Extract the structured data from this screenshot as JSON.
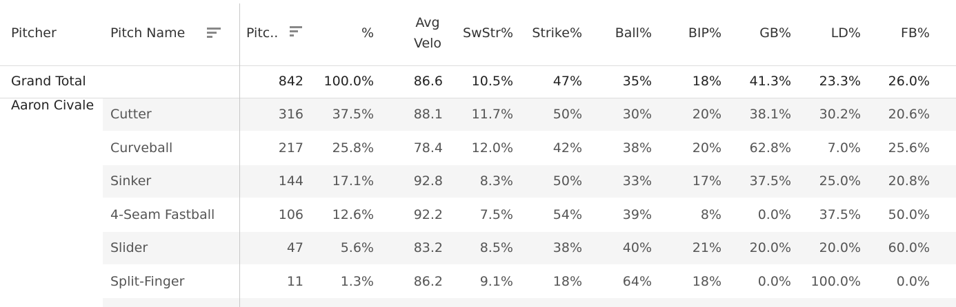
{
  "header": {
    "pitcher": "Pitcher",
    "pitch_name": "Pitch Name",
    "pitches": "Pitc..",
    "pct": "%",
    "avg_velo_1": "Avg",
    "avg_velo_2": "Velo",
    "swstr": "SwStr%",
    "strike": "Strike%",
    "ball": "Ball%",
    "bip": "BIP%",
    "gb": "GB%",
    "ld": "LD%",
    "fb": "FB%"
  },
  "grand_total": {
    "label": "Grand Total",
    "pitches": "842",
    "pct": "100.0%",
    "velo": "86.6",
    "swstr": "10.5%",
    "strike": "47%",
    "ball": "35%",
    "bip": "18%",
    "gb": "41.3%",
    "ld": "23.3%",
    "fb": "26.0%"
  },
  "pitcher": "Aaron Civale",
  "rows": [
    {
      "name": "Cutter",
      "pitches": "316",
      "pct": "37.5%",
      "velo": "88.1",
      "swstr": "11.7%",
      "strike": "50%",
      "ball": "30%",
      "bip": "20%",
      "gb": "38.1%",
      "ld": "30.2%",
      "fb": "20.6%"
    },
    {
      "name": "Curveball",
      "pitches": "217",
      "pct": "25.8%",
      "velo": "78.4",
      "swstr": "12.0%",
      "strike": "42%",
      "ball": "38%",
      "bip": "20%",
      "gb": "62.8%",
      "ld": "7.0%",
      "fb": "25.6%"
    },
    {
      "name": "Sinker",
      "pitches": "144",
      "pct": "17.1%",
      "velo": "92.8",
      "swstr": "8.3%",
      "strike": "50%",
      "ball": "33%",
      "bip": "17%",
      "gb": "37.5%",
      "ld": "25.0%",
      "fb": "20.8%"
    },
    {
      "name": "4-Seam Fastball",
      "pitches": "106",
      "pct": "12.6%",
      "velo": "92.2",
      "swstr": "7.5%",
      "strike": "54%",
      "ball": "39%",
      "bip": "8%",
      "gb": "0.0%",
      "ld": "37.5%",
      "fb": "50.0%"
    },
    {
      "name": "Slider",
      "pitches": "47",
      "pct": "5.6%",
      "velo": "83.2",
      "swstr": "8.5%",
      "strike": "38%",
      "ball": "40%",
      "bip": "21%",
      "gb": "20.0%",
      "ld": "20.0%",
      "fb": "60.0%"
    },
    {
      "name": "Split-Finger",
      "pitches": "11",
      "pct": "1.3%",
      "velo": "86.2",
      "swstr": "9.1%",
      "strike": "18%",
      "ball": "64%",
      "bip": "18%",
      "gb": "0.0%",
      "ld": "100.0%",
      "fb": "0.0%"
    }
  ],
  "icons": {
    "pitch_name_sort": "sort-descending-icon",
    "pitches_sort": "sort-descending-icon"
  }
}
